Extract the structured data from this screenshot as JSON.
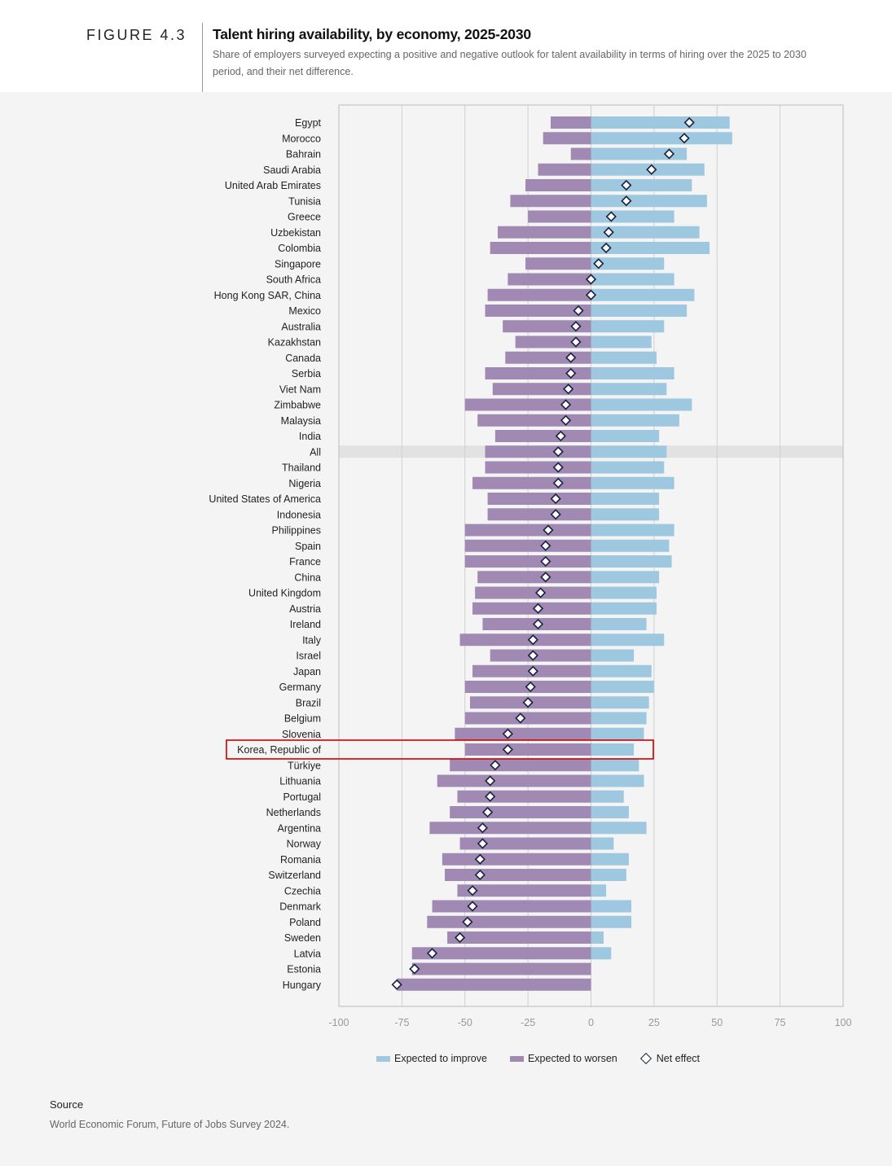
{
  "figure": {
    "label": "FIGURE 4.3",
    "title": "Talent hiring availability, by economy, 2025-2030",
    "subtitle": "Share of employers surveyed expecting a positive and negative outlook for talent availability in terms of hiring over the 2025 to 2030 period, and their net difference."
  },
  "colors": {
    "improve": "#9ec7e0",
    "worsen": "#a08ab3",
    "highlight_row": "#e2e2e2",
    "highlight_box": "#cc0000",
    "diamond_stroke": "#1c2340"
  },
  "chart_data": {
    "type": "bar",
    "orientation": "horizontal-diverging",
    "title": "Talent hiring availability, by economy, 2025-2030",
    "xlabel": "",
    "ylabel": "",
    "xlim": [
      -100,
      100
    ],
    "xticks": [
      -100,
      -75,
      -50,
      -25,
      0,
      25,
      50,
      75,
      100
    ],
    "xtick_labels": [
      "-100",
      "-75",
      "-50",
      "-25",
      "0",
      "25",
      "50",
      "75",
      "100"
    ],
    "grid": true,
    "highlight_aggregate": "All",
    "highlight_boxed": "Korea, Republic of",
    "categories": [
      "Egypt",
      "Morocco",
      "Bahrain",
      "Saudi Arabia",
      "United Arab Emirates",
      "Tunisia",
      "Greece",
      "Uzbekistan",
      "Colombia",
      "Singapore",
      "South Africa",
      "Hong Kong SAR, China",
      "Mexico",
      "Australia",
      "Kazakhstan",
      "Canada",
      "Serbia",
      "Viet Nam",
      "Zimbabwe",
      "Malaysia",
      "India",
      "All",
      "Thailand",
      "Nigeria",
      "United States of America",
      "Indonesia",
      "Philippines",
      "Spain",
      "France",
      "China",
      "United Kingdom",
      "Austria",
      "Ireland",
      "Italy",
      "Israel",
      "Japan",
      "Germany",
      "Brazil",
      "Belgium",
      "Slovenia",
      "Korea, Republic of",
      "Türkiye",
      "Lithuania",
      "Portugal",
      "Netherlands",
      "Argentina",
      "Norway",
      "Romania",
      "Switzerland",
      "Czechia",
      "Denmark",
      "Poland",
      "Sweden",
      "Latvia",
      "Estonia",
      "Hungary"
    ],
    "series": [
      {
        "name": "Expected to improve",
        "values": [
          55,
          56,
          38,
          45,
          40,
          46,
          33,
          43,
          47,
          29,
          33,
          41,
          38,
          29,
          24,
          26,
          33,
          30,
          40,
          35,
          27,
          30,
          29,
          33,
          27,
          27,
          33,
          31,
          32,
          27,
          26,
          26,
          22,
          29,
          17,
          24,
          25,
          23,
          22,
          21,
          17,
          19,
          21,
          13,
          15,
          22,
          9,
          15,
          14,
          6,
          16,
          16,
          5,
          8,
          0,
          0
        ]
      },
      {
        "name": "Expected to worsen",
        "values": [
          -16,
          -19,
          -8,
          -21,
          -26,
          -32,
          -25,
          -37,
          -40,
          -26,
          -33,
          -41,
          -42,
          -35,
          -30,
          -34,
          -42,
          -39,
          -50,
          -45,
          -38,
          -42,
          -42,
          -47,
          -41,
          -41,
          -50,
          -50,
          -50,
          -45,
          -46,
          -47,
          -43,
          -52,
          -40,
          -47,
          -50,
          -48,
          -50,
          -54,
          -50,
          -56,
          -61,
          -53,
          -56,
          -64,
          -52,
          -59,
          -58,
          -53,
          -63,
          -65,
          -57,
          -71,
          -71,
          -77
        ]
      },
      {
        "name": "Net effect",
        "values": [
          39,
          37,
          31,
          24,
          14,
          14,
          8,
          7,
          6,
          3,
          0,
          0,
          -5,
          -6,
          -6,
          -8,
          -8,
          -9,
          -10,
          -10,
          -12,
          -13,
          -13,
          -13,
          -14,
          -14,
          -17,
          -18,
          -18,
          -18,
          -20,
          -21,
          -21,
          -23,
          -23,
          -23,
          -24,
          -25,
          -28,
          -33,
          -33,
          -38,
          -40,
          -40,
          -41,
          -43,
          -43,
          -44,
          -44,
          -47,
          -47,
          -49,
          -52,
          -63,
          -70,
          -77
        ]
      }
    ]
  },
  "legend": {
    "improve": "Expected to improve",
    "worsen": "Expected to worsen",
    "net": "Net effect"
  },
  "source": {
    "title": "Source",
    "text": "World Economic Forum, Future of Jobs Survey 2024."
  }
}
